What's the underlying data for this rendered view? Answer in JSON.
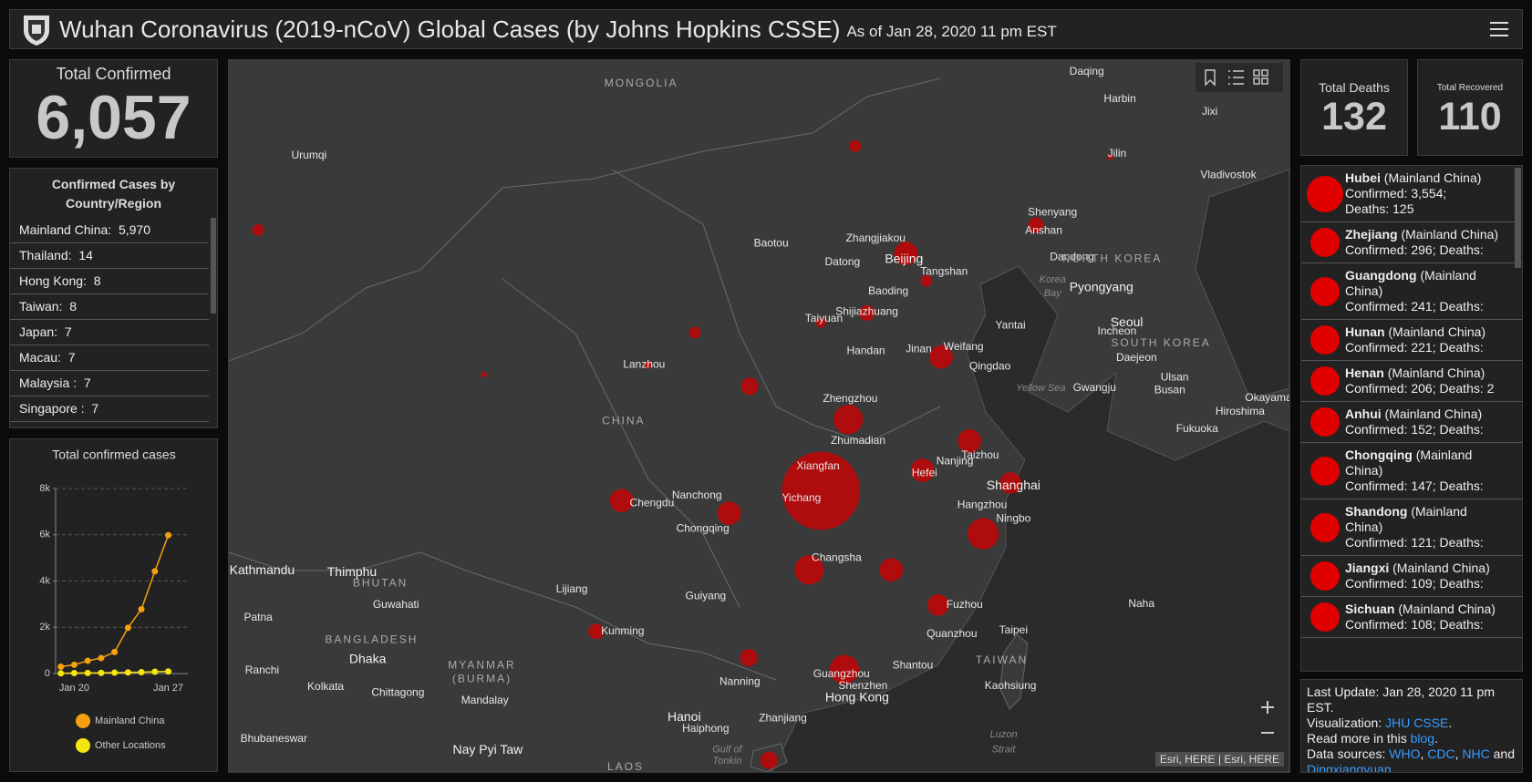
{
  "header": {
    "title": "Wuhan Coronavirus (2019-nCoV) Global Cases (by Johns Hopkins CSSE)",
    "subtitle": "As of Jan 28, 2020 11 pm EST"
  },
  "total_confirmed": {
    "label": "Total Confirmed",
    "value": "6,057"
  },
  "country_list": {
    "title": "Confirmed Cases by Country/Region",
    "rows": [
      {
        "name": "Mainland China:",
        "value": "5,970"
      },
      {
        "name": "Thailand:",
        "value": "14"
      },
      {
        "name": "Hong Kong:",
        "value": "8"
      },
      {
        "name": "Taiwan:",
        "value": "8"
      },
      {
        "name": "Japan:",
        "value": "7"
      },
      {
        "name": "Macau:",
        "value": "7"
      },
      {
        "name": "Malaysia :",
        "value": "7"
      },
      {
        "name": "Singapore :",
        "value": "7"
      }
    ]
  },
  "chart_data": {
    "type": "line",
    "title": "Total confirmed cases",
    "categories": [
      null,
      "Jan 20",
      null,
      null,
      null,
      null,
      null,
      null,
      "Jan 27"
    ],
    "series": [
      {
        "name": "Mainland China",
        "color": "#f5a00f",
        "values": [
          295,
          380,
          550,
          670,
          930,
          1980,
          2780,
          4420,
          5980
        ]
      },
      {
        "name": "Other Locations",
        "color": "#f6e60f",
        "values": [
          10,
          20,
          25,
          30,
          40,
          50,
          60,
          80,
          90
        ]
      }
    ],
    "ylim": [
      0,
      8000
    ],
    "yticks": [
      0,
      {
        "value": 2000,
        "label": "2k"
      },
      {
        "value": 4000,
        "label": "4k"
      },
      {
        "value": 6000,
        "label": "6k"
      },
      {
        "value": 8000,
        "label": "8k"
      }
    ],
    "grid": true
  },
  "map": {
    "labels": [
      "MONGOLIA",
      "Urumqi",
      "Daqing",
      "Harbin",
      "Jixi",
      "Jilin",
      "Vladivostok",
      "Shenyang",
      "Anshan",
      "Baotou",
      "Zhangjiakou",
      "Beijing",
      "Datong",
      "Tangshan",
      "Dandong",
      "NORTH KOREA",
      "Korea",
      "Bay",
      "Pyongyang",
      "Baoding",
      "Shijiazhuang",
      "Taiyuan",
      "Yantai",
      "Seoul",
      "Incheon",
      "SOUTH KOREA",
      "Handan",
      "Jinan",
      "Weifang",
      "Qingdao",
      "Daejeon",
      "Lanzhou",
      "Ulsan",
      "Busan",
      "Gwangju",
      "Yellow Sea",
      "Okayama",
      "Hiroshima",
      "Zhengzhou",
      "CHINA",
      "Fukuoka",
      "Zhumadian",
      "Taizhou",
      "Nanjing",
      "Xiangfan",
      "Hefei",
      "Shanghai",
      "Nanchong",
      "Yichang",
      "Chengdu",
      "Hangzhou",
      "Ningbo",
      "Chongqing",
      "Changsha",
      "Kathmandu",
      "Thimphu",
      "BHUTAN",
      "Lijiang",
      "Guiyang",
      "Guwahati",
      "Fuzhou",
      "Naha",
      "Patna",
      "Taipei",
      "Kunming",
      "Quanzhou",
      "BANGLADESH",
      "Dhaka",
      "MYANMAR",
      "(BURMA)",
      "Shantou",
      "TAIWAN",
      "Ranchi",
      "Guangzhou",
      "Nanning",
      "Shenzhen",
      "Hong Kong",
      "Kaohsiung",
      "Kolkata",
      "Chittagong",
      "Mandalay",
      "Hanoi",
      "Zhanjiang",
      "Haiphong",
      "Bhubaneswar",
      "Luzon",
      "Strait",
      "Nay Pyi Taw",
      "Gulf of",
      "Tonkin",
      "LAOS"
    ],
    "attribution": "Esri, HERE | Esri, HERE"
  },
  "total_deaths": {
    "label": "Total Deaths",
    "value": "132"
  },
  "total_recovered": {
    "label": "Total Recovered",
    "value": "110"
  },
  "province_list": [
    {
      "name": "Hubei",
      "region": "(Mainland China)",
      "lines": [
        "Confirmed: 3,554;",
        "Deaths: 125"
      ]
    },
    {
      "name": "Zhejiang",
      "region": "(Mainland China)",
      "lines": [
        "Confirmed: 296; Deaths:"
      ]
    },
    {
      "name": "Guangdong",
      "region": "(Mainland China)",
      "lines": [
        "Confirmed: 241; Deaths:"
      ]
    },
    {
      "name": "Hunan",
      "region": "(Mainland China)",
      "lines": [
        "Confirmed: 221; Deaths:"
      ]
    },
    {
      "name": "Henan",
      "region": "(Mainland China)",
      "lines": [
        "Confirmed: 206; Deaths: 2"
      ]
    },
    {
      "name": "Anhui",
      "region": "(Mainland China)",
      "lines": [
        "Confirmed: 152; Deaths:"
      ]
    },
    {
      "name": "Chongqing",
      "region": "(Mainland China)",
      "lines": [
        "Confirmed: 147; Deaths:"
      ]
    },
    {
      "name": "Shandong",
      "region": "(Mainland China)",
      "lines": [
        "Confirmed: 121; Deaths:"
      ]
    },
    {
      "name": "Jiangxi",
      "region": "(Mainland China)",
      "lines": [
        "Confirmed: 109; Deaths:"
      ]
    },
    {
      "name": "Sichuan",
      "region": "(Mainland China)",
      "lines": [
        "Confirmed: 108; Deaths:"
      ]
    }
  ],
  "info": {
    "paragraphs": [
      [
        {
          "text": "Last Update: Jan 28, 2020 11 pm EST."
        }
      ],
      [
        {
          "text": "Visualization: "
        },
        {
          "text": "JHU CSSE",
          "link": true
        },
        {
          "text": "."
        }
      ],
      [
        {
          "text": "Read more in this "
        },
        {
          "text": "blog",
          "link": true
        },
        {
          "text": "."
        }
      ],
      [
        {
          "text": "Data sources: "
        },
        {
          "text": "WHO",
          "link": true
        },
        {
          "text": ", "
        },
        {
          "text": "CDC",
          "link": true
        },
        {
          "text": ", "
        },
        {
          "text": "NHC",
          "link": true
        },
        {
          "text": " and "
        },
        {
          "text": "Dingxiangyuan",
          "link": true
        }
      ]
    ]
  }
}
